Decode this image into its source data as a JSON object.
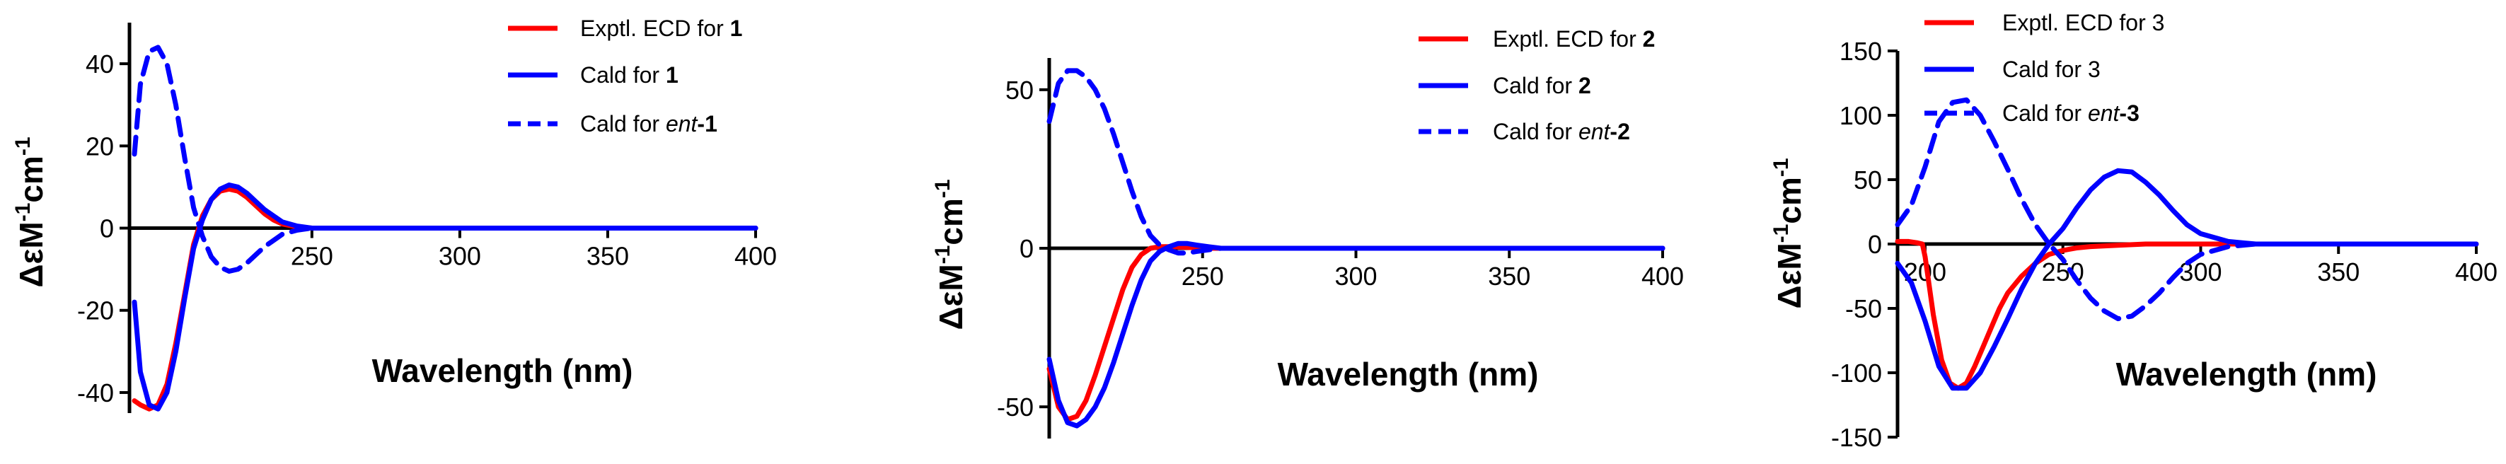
{
  "chart_data": [
    {
      "type": "line",
      "xlabel": "Wavelength (nm)",
      "ylabel_parts": [
        "Δε",
        "M",
        "-1",
        "cm",
        "-1"
      ],
      "xlim": [
        190,
        400
      ],
      "ylim": [
        -45,
        50
      ],
      "x_ticks": [
        250,
        300,
        350,
        400
      ],
      "y_ticks": [
        40,
        20,
        0,
        -20,
        -40
      ],
      "legend": [
        {
          "prefix": "Exptl. ECD for ",
          "italic": "",
          "bold": "1"
        },
        {
          "prefix": "Cald for  ",
          "italic": "",
          "bold": "1"
        },
        {
          "prefix": "Cald for  ",
          "italic": "ent",
          "bold": "-1"
        }
      ],
      "series": [
        {
          "name": "Exptl. ECD for 1",
          "color": "#ff0000",
          "dash": false,
          "x": [
            190,
            192,
            195,
            198,
            201,
            204,
            207,
            210,
            213,
            216,
            219,
            222,
            225,
            228,
            231,
            234,
            237,
            240,
            245,
            250,
            260,
            280,
            300,
            350,
            400
          ],
          "y": [
            -42,
            -43,
            -44,
            -43,
            -38,
            -28,
            -16,
            -4,
            3,
            7,
            9,
            9.5,
            9,
            7.5,
            5.5,
            3.5,
            2,
            1,
            0.3,
            0,
            0,
            0,
            0,
            0,
            0
          ]
        },
        {
          "name": "Cald for 1",
          "color": "#0000ff",
          "dash": false,
          "x": [
            190,
            192,
            195,
            198,
            201,
            204,
            207,
            210,
            213,
            216,
            219,
            222,
            225,
            228,
            231,
            234,
            237,
            240,
            245,
            250,
            255,
            260,
            280,
            300,
            350,
            400
          ],
          "y": [
            -18,
            -35,
            -43,
            -44,
            -40,
            -30,
            -17,
            -5,
            2,
            7,
            9.5,
            10.5,
            10,
            8.5,
            6.5,
            4.5,
            3,
            1.5,
            0.5,
            0,
            0,
            0,
            0,
            0,
            0,
            0
          ]
        },
        {
          "name": "Cald for ent-1",
          "color": "#0000ff",
          "dash": true,
          "x": [
            190,
            192,
            195,
            198,
            201,
            204,
            207,
            210,
            213,
            216,
            219,
            222,
            225,
            228,
            231,
            234,
            237,
            240,
            245,
            250,
            255,
            260,
            280,
            300,
            350,
            400
          ],
          "y": [
            18,
            35,
            43,
            44,
            40,
            30,
            17,
            5,
            -2,
            -7,
            -9.5,
            -10.5,
            -10,
            -8.5,
            -6.5,
            -4.5,
            -3,
            -1.5,
            -0.5,
            0,
            0,
            0,
            0,
            0,
            0,
            0
          ]
        }
      ]
    },
    {
      "type": "line",
      "xlabel": "Wavelength (nm)",
      "ylabel_parts": [
        "Δε",
        "M",
        "-1",
        "cm",
        "-1"
      ],
      "xlim": [
        200,
        400
      ],
      "ylim": [
        -60,
        60
      ],
      "x_ticks": [
        250,
        300,
        350,
        400
      ],
      "y_ticks": [
        50,
        0,
        -50
      ],
      "legend": [
        {
          "prefix": "Exptl. ECD for ",
          "italic": "",
          "bold": "2"
        },
        {
          "prefix": "Cald for ",
          "italic": "",
          "bold": "2"
        },
        {
          "prefix": "Cald for  ",
          "italic": "ent",
          "bold": "-2"
        }
      ],
      "series": [
        {
          "name": "Exptl. ECD for 2",
          "color": "#ff0000",
          "dash": false,
          "x": [
            200,
            203,
            206,
            209,
            212,
            215,
            218,
            221,
            224,
            227,
            230,
            233,
            236,
            240,
            245,
            250,
            260,
            280,
            300,
            350,
            400
          ],
          "y": [
            -38,
            -50,
            -54,
            -53,
            -48,
            -40,
            -31,
            -22,
            -13,
            -6,
            -2,
            0,
            0.5,
            0.5,
            0.3,
            0,
            0,
            0,
            0,
            0,
            0
          ]
        },
        {
          "name": "Cald for 2",
          "color": "#0000ff",
          "dash": false,
          "x": [
            200,
            203,
            206,
            209,
            212,
            215,
            218,
            221,
            224,
            227,
            230,
            233,
            236,
            239,
            242,
            245,
            248,
            252,
            256,
            260,
            270,
            300,
            350,
            400
          ],
          "y": [
            -35,
            -48,
            -55,
            -56,
            -54,
            -50,
            -44,
            -36,
            -27,
            -18,
            -10,
            -4,
            -1,
            0.5,
            1.5,
            1.5,
            1,
            0.5,
            0,
            0,
            0,
            0,
            0,
            0
          ]
        },
        {
          "name": "Cald for ent-2",
          "color": "#0000ff",
          "dash": true,
          "x": [
            200,
            203,
            206,
            209,
            212,
            215,
            218,
            221,
            224,
            227,
            230,
            233,
            236,
            239,
            242,
            245,
            248,
            252,
            256,
            260,
            270,
            300,
            350,
            400
          ],
          "y": [
            40,
            52,
            56,
            56,
            54,
            50,
            44,
            36,
            27,
            18,
            10,
            4,
            1,
            -0.5,
            -1.5,
            -1.5,
            -1,
            -0.5,
            0,
            0,
            0,
            0,
            0,
            0
          ]
        }
      ]
    },
    {
      "type": "line",
      "xlabel": "Wavelength (nm)",
      "ylabel_parts": [
        "Δε",
        "M",
        "-1",
        "cm",
        "-1"
      ],
      "xlim": [
        190,
        400
      ],
      "ylim": [
        -150,
        150
      ],
      "x_ticks": [
        200,
        250,
        300,
        350,
        400
      ],
      "y_ticks": [
        150,
        100,
        50,
        0,
        -50,
        -100,
        -150
      ],
      "legend": [
        {
          "prefix": "Exptl. ECD for 3",
          "italic": "",
          "bold": ""
        },
        {
          "prefix": "Cald for 3",
          "italic": "",
          "bold": ""
        },
        {
          "prefix": "Cald for  ",
          "italic": "ent",
          "bold": "-3"
        }
      ],
      "series": [
        {
          "name": "Exptl. ECD for 3",
          "color": "#ff0000",
          "dash": false,
          "x": [
            190,
            194,
            197,
            199,
            200,
            203,
            206,
            209,
            212,
            215,
            218,
            221,
            224,
            227,
            230,
            235,
            240,
            245,
            250,
            255,
            260,
            270,
            280,
            300,
            320,
            350,
            400
          ],
          "y": [
            2,
            2,
            1,
            0,
            -10,
            -55,
            -90,
            -108,
            -112,
            -108,
            -95,
            -80,
            -65,
            -50,
            -38,
            -25,
            -15,
            -8,
            -5,
            -3,
            -2,
            -1,
            0,
            0,
            0,
            0,
            0
          ]
        },
        {
          "name": "Cald for 3",
          "color": "#0000ff",
          "dash": false,
          "x": [
            190,
            195,
            200,
            205,
            210,
            215,
            220,
            225,
            230,
            235,
            240,
            245,
            250,
            255,
            260,
            265,
            270,
            275,
            280,
            285,
            290,
            295,
            300,
            310,
            320,
            330,
            350,
            400
          ],
          "y": [
            -15,
            -30,
            -60,
            -95,
            -112,
            -112,
            -100,
            -80,
            -58,
            -35,
            -15,
            0,
            12,
            28,
            42,
            52,
            57,
            56,
            48,
            38,
            26,
            15,
            8,
            2,
            0,
            0,
            0,
            0
          ]
        },
        {
          "name": "Cald for ent-3",
          "color": "#0000ff",
          "dash": true,
          "x": [
            190,
            195,
            200,
            205,
            210,
            215,
            220,
            225,
            230,
            235,
            240,
            245,
            250,
            255,
            260,
            265,
            270,
            275,
            280,
            285,
            290,
            295,
            300,
            310,
            320,
            330,
            350,
            400
          ],
          "y": [
            15,
            30,
            60,
            95,
            110,
            112,
            100,
            80,
            58,
            35,
            15,
            0,
            -12,
            -28,
            -42,
            -52,
            -58,
            -56,
            -48,
            -38,
            -26,
            -15,
            -8,
            -2,
            0,
            0,
            0,
            0
          ]
        }
      ]
    }
  ]
}
